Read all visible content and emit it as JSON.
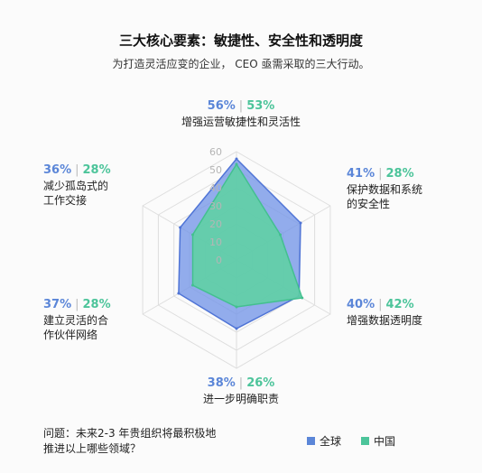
{
  "title": "三大核心要素：敏捷性、安全性和透明度",
  "subtitle": "为打造灵活应变的企业， CEO 亟需采取的三大行动。",
  "question": "问题：未来2-3 年贵组织将最积极地\n推进以上哪些领域？",
  "chart_data": {
    "type": "radar",
    "categories": [
      "增强运营敏捷性和灵活性",
      "保护数据和系统\n的安全性",
      "增强数据透明度",
      "进一步明确职责",
      "建立灵活的合\n作伙伴网络",
      "减少孤岛式的\n工作交接"
    ],
    "series": [
      {
        "name": "全球",
        "values": [
          56,
          41,
          40,
          38,
          37,
          36
        ],
        "color": "#7a9ae8"
      },
      {
        "name": "中国",
        "values": [
          53,
          28,
          42,
          26,
          28,
          28
        ],
        "color": "#5fd1a3"
      }
    ],
    "value_labels": {
      "global": [
        "56%",
        "41%",
        "40%",
        "38%",
        "37%",
        "36%"
      ],
      "china": [
        "53%",
        "28%",
        "42%",
        "26%",
        "28%",
        "28%"
      ]
    },
    "r_ticks": [
      "0",
      "10",
      "20",
      "30",
      "40",
      "50",
      "60"
    ],
    "rlim": [
      0,
      60
    ],
    "grid": true,
    "legend_position": "bottom-right"
  },
  "legend": [
    {
      "label": "全球",
      "color": "#5b86d8"
    },
    {
      "label": "中国",
      "color": "#4cc49a"
    }
  ]
}
